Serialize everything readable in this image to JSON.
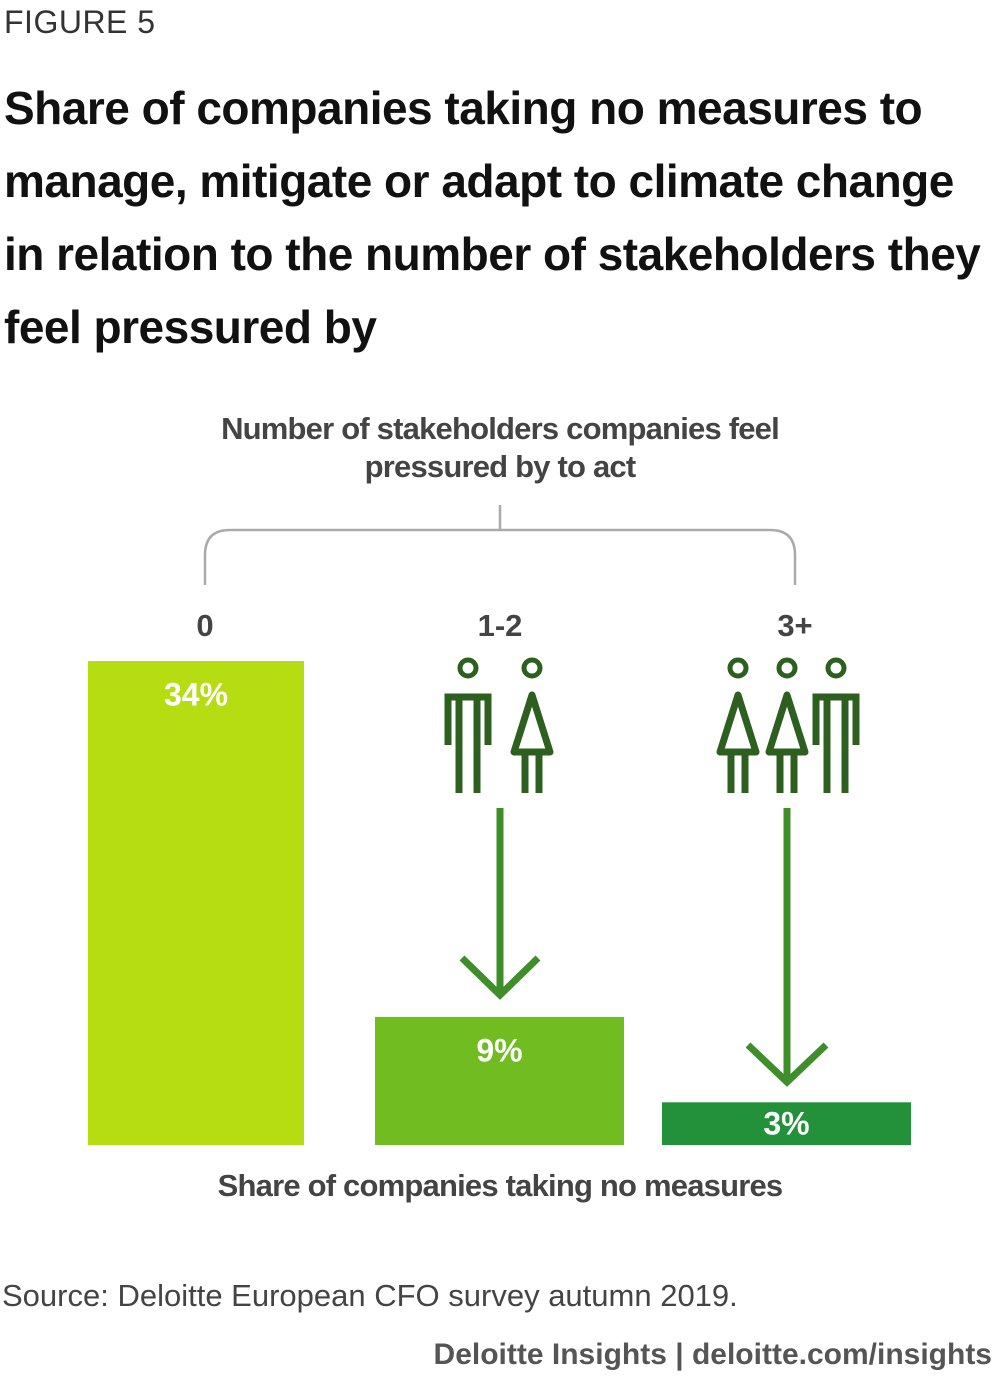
{
  "figure_label": "FIGURE 5",
  "chart_data": {
    "type": "bar",
    "title": "Share of companies taking no measures to manage, mitigate or adapt to climate change in relation to the number of stakeholders they feel pressured by",
    "x_label": "Number of stakeholders companies feel pressured by to act",
    "value_label": "Share of companies taking no measures",
    "categories": [
      "0",
      "1-2",
      "3+"
    ],
    "values": [
      34,
      9,
      3
    ],
    "value_labels": [
      "34%",
      "9%",
      "3%"
    ],
    "colors": [
      "#b6dd12",
      "#71bc20",
      "#23903a"
    ]
  },
  "source": "Source: Deloitte European CFO survey autumn 2019.",
  "footer": "Deloitte Insights | deloitte.com/insights"
}
